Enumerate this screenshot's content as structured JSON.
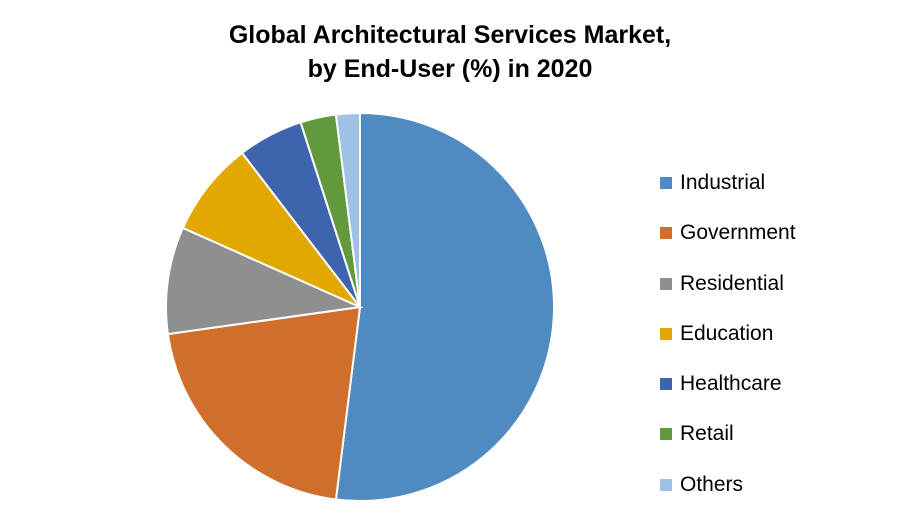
{
  "chart_data": {
    "type": "pie",
    "title_lines": [
      "Global Architectural Services Market,",
      "by End-User (%) in 2020"
    ],
    "categories": [
      "Industrial",
      "Government",
      "Residential",
      "Education",
      "Healthcare",
      "Retail",
      "Others"
    ],
    "values": [
      52.5,
      21.0,
      9.0,
      8.0,
      5.5,
      3.0,
      2.0
    ],
    "colors": [
      "#4f8ac0",
      "#d06e2c",
      "#8f8f8f",
      "#e1a800",
      "#3f64ae",
      "#62993d",
      "#9fc1e6"
    ],
    "legend_position": "right"
  }
}
